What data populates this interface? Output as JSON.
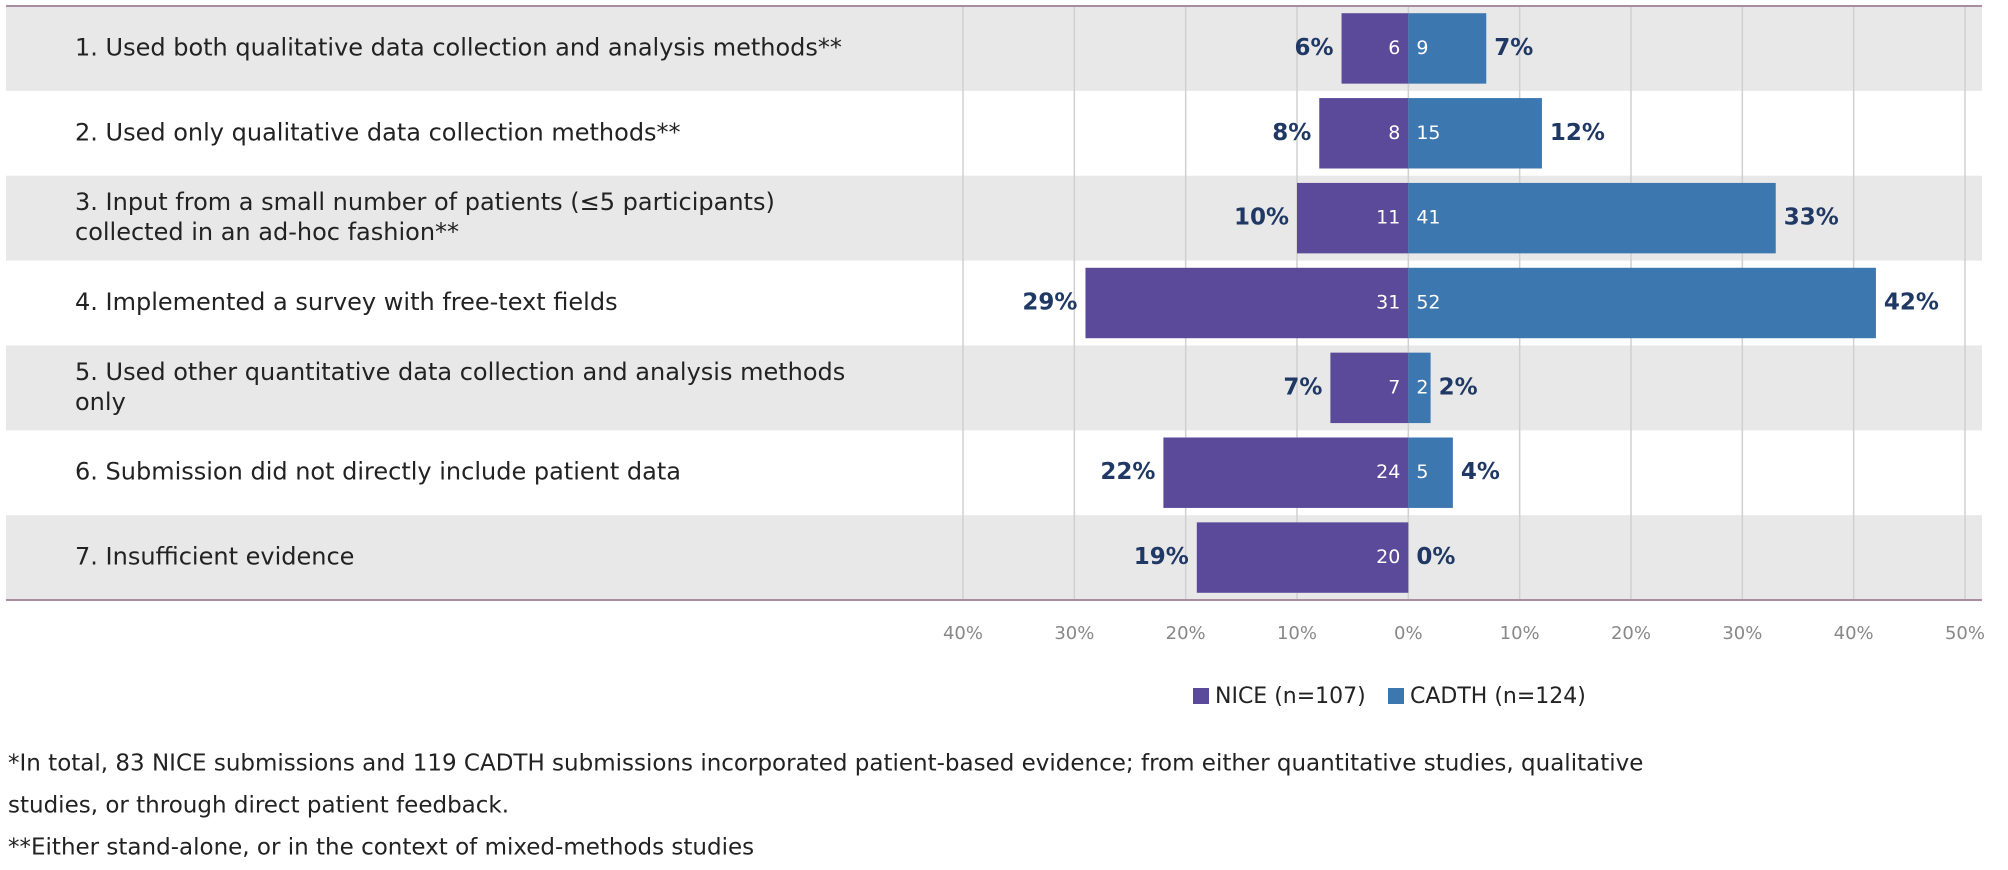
{
  "chart_data": {
    "type": "diverging-bar",
    "categories": [
      "1. Used both qualitative data collection and analysis methods**",
      "2. Used only qualitative data collection methods**",
      "3. Input from a small number of patients (≤5 participants)\ncollected in an ad-hoc fashion**",
      "4. Implemented a survey with free-text fields",
      "5. Used other quantitative data collection and analysis methods\nonly",
      "6. Submission did not directly include patient data",
      "7. Insufficient evidence"
    ],
    "series": [
      {
        "name": "NICE (n=107)",
        "color": "#5b4a9a",
        "side": "left",
        "values": [
          6,
          8,
          10,
          29,
          7,
          22,
          19
        ],
        "value_labels": [
          "6%",
          "8%",
          "10%",
          "29%",
          "7%",
          "22%",
          "19%"
        ],
        "counts": [
          6,
          8,
          11,
          31,
          7,
          24,
          20
        ]
      },
      {
        "name": "CADTH (n=124)",
        "color": "#3d77b0",
        "side": "right",
        "values": [
          7,
          12,
          33,
          42,
          2,
          4,
          0
        ],
        "value_labels": [
          "7%",
          "12%",
          "33%",
          "42%",
          "2%",
          "4%",
          "0%"
        ],
        "counts": [
          9,
          15,
          41,
          52,
          2,
          5,
          null
        ]
      }
    ],
    "xlim": [
      -40,
      50
    ],
    "xticks": [
      {
        "value": -40,
        "label": "40%"
      },
      {
        "value": -30,
        "label": "30%"
      },
      {
        "value": -20,
        "label": "20%"
      },
      {
        "value": -10,
        "label": "10%"
      },
      {
        "value": 0,
        "label": "0%"
      },
      {
        "value": 10,
        "label": "10%"
      },
      {
        "value": 20,
        "label": "20%"
      },
      {
        "value": 30,
        "label": "30%"
      },
      {
        "value": 40,
        "label": "40%"
      },
      {
        "value": 50,
        "label": "50%"
      }
    ],
    "grid": true,
    "notes": [
      "*In total, 83 NICE submissions and 119 CADTH submissions incorporated patient-based evidence; from either quantitative studies, qualitative",
      "studies, or through direct patient feedback.",
      "**Either stand-alone, or in the context of mixed-methods studies"
    ]
  }
}
